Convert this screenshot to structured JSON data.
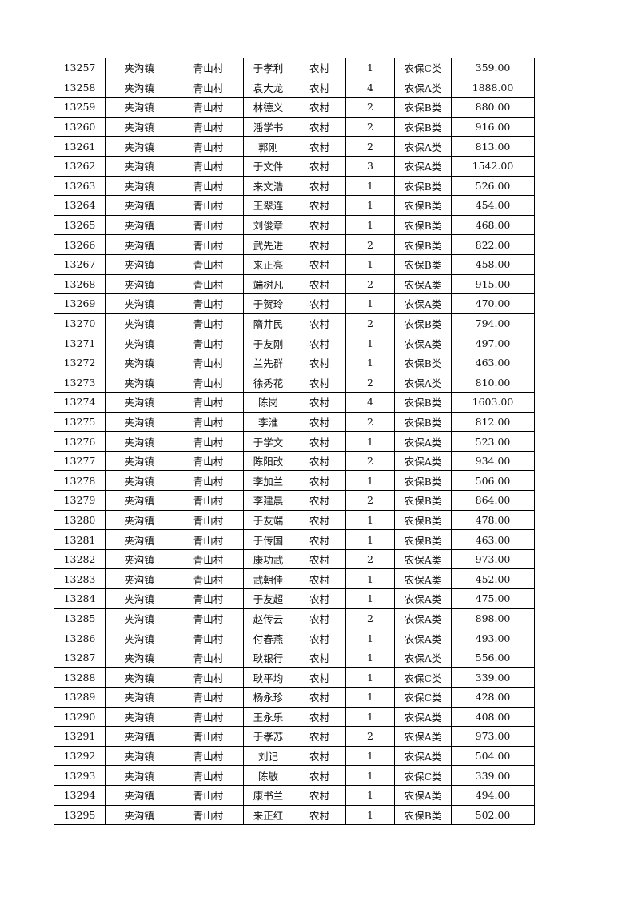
{
  "table": {
    "rows": [
      [
        "13257",
        "夹沟镇",
        "青山村",
        "于孝利",
        "农村",
        "1",
        "农保C类",
        "359.00"
      ],
      [
        "13258",
        "夹沟镇",
        "青山村",
        "袁大龙",
        "农村",
        "4",
        "农保A类",
        "1888.00"
      ],
      [
        "13259",
        "夹沟镇",
        "青山村",
        "林德义",
        "农村",
        "2",
        "农保B类",
        "880.00"
      ],
      [
        "13260",
        "夹沟镇",
        "青山村",
        "潘学书",
        "农村",
        "2",
        "农保B类",
        "916.00"
      ],
      [
        "13261",
        "夹沟镇",
        "青山村",
        "郭刚",
        "农村",
        "2",
        "农保A类",
        "813.00"
      ],
      [
        "13262",
        "夹沟镇",
        "青山村",
        "于文件",
        "农村",
        "3",
        "农保A类",
        "1542.00"
      ],
      [
        "13263",
        "夹沟镇",
        "青山村",
        "来文浩",
        "农村",
        "1",
        "农保B类",
        "526.00"
      ],
      [
        "13264",
        "夹沟镇",
        "青山村",
        "王翠连",
        "农村",
        "1",
        "农保B类",
        "454.00"
      ],
      [
        "13265",
        "夹沟镇",
        "青山村",
        "刘俊章",
        "农村",
        "1",
        "农保B类",
        "468.00"
      ],
      [
        "13266",
        "夹沟镇",
        "青山村",
        "武先进",
        "农村",
        "2",
        "农保B类",
        "822.00"
      ],
      [
        "13267",
        "夹沟镇",
        "青山村",
        "来正亮",
        "农村",
        "1",
        "农保B类",
        "458.00"
      ],
      [
        "13268",
        "夹沟镇",
        "青山村",
        "端树凡",
        "农村",
        "2",
        "农保A类",
        "915.00"
      ],
      [
        "13269",
        "夹沟镇",
        "青山村",
        "于贺玲",
        "农村",
        "1",
        "农保A类",
        "470.00"
      ],
      [
        "13270",
        "夹沟镇",
        "青山村",
        "隋井民",
        "农村",
        "2",
        "农保B类",
        "794.00"
      ],
      [
        "13271",
        "夹沟镇",
        "青山村",
        "于友刚",
        "农村",
        "1",
        "农保A类",
        "497.00"
      ],
      [
        "13272",
        "夹沟镇",
        "青山村",
        "兰先群",
        "农村",
        "1",
        "农保B类",
        "463.00"
      ],
      [
        "13273",
        "夹沟镇",
        "青山村",
        "徐秀花",
        "农村",
        "2",
        "农保A类",
        "810.00"
      ],
      [
        "13274",
        "夹沟镇",
        "青山村",
        "陈岗",
        "农村",
        "4",
        "农保B类",
        "1603.00"
      ],
      [
        "13275",
        "夹沟镇",
        "青山村",
        "李淮",
        "农村",
        "2",
        "农保B类",
        "812.00"
      ],
      [
        "13276",
        "夹沟镇",
        "青山村",
        "于学文",
        "农村",
        "1",
        "农保A类",
        "523.00"
      ],
      [
        "13277",
        "夹沟镇",
        "青山村",
        "陈阳改",
        "农村",
        "2",
        "农保A类",
        "934.00"
      ],
      [
        "13278",
        "夹沟镇",
        "青山村",
        "李加兰",
        "农村",
        "1",
        "农保B类",
        "506.00"
      ],
      [
        "13279",
        "夹沟镇",
        "青山村",
        "李建晨",
        "农村",
        "2",
        "农保B类",
        "864.00"
      ],
      [
        "13280",
        "夹沟镇",
        "青山村",
        "于友端",
        "农村",
        "1",
        "农保B类",
        "478.00"
      ],
      [
        "13281",
        "夹沟镇",
        "青山村",
        "于传国",
        "农村",
        "1",
        "农保B类",
        "463.00"
      ],
      [
        "13282",
        "夹沟镇",
        "青山村",
        "康功武",
        "农村",
        "2",
        "农保A类",
        "973.00"
      ],
      [
        "13283",
        "夹沟镇",
        "青山村",
        "武朝佳",
        "农村",
        "1",
        "农保A类",
        "452.00"
      ],
      [
        "13284",
        "夹沟镇",
        "青山村",
        "于友超",
        "农村",
        "1",
        "农保A类",
        "475.00"
      ],
      [
        "13285",
        "夹沟镇",
        "青山村",
        "赵传云",
        "农村",
        "2",
        "农保A类",
        "898.00"
      ],
      [
        "13286",
        "夹沟镇",
        "青山村",
        "付春燕",
        "农村",
        "1",
        "农保A类",
        "493.00"
      ],
      [
        "13287",
        "夹沟镇",
        "青山村",
        "耿银行",
        "农村",
        "1",
        "农保A类",
        "556.00"
      ],
      [
        "13288",
        "夹沟镇",
        "青山村",
        "耿平均",
        "农村",
        "1",
        "农保C类",
        "339.00"
      ],
      [
        "13289",
        "夹沟镇",
        "青山村",
        "杨永珍",
        "农村",
        "1",
        "农保C类",
        "428.00"
      ],
      [
        "13290",
        "夹沟镇",
        "青山村",
        "王永乐",
        "农村",
        "1",
        "农保A类",
        "408.00"
      ],
      [
        "13291",
        "夹沟镇",
        "青山村",
        "于孝苏",
        "农村",
        "2",
        "农保A类",
        "973.00"
      ],
      [
        "13292",
        "夹沟镇",
        "青山村",
        "刘记",
        "农村",
        "1",
        "农保A类",
        "504.00"
      ],
      [
        "13293",
        "夹沟镇",
        "青山村",
        "陈敏",
        "农村",
        "1",
        "农保C类",
        "339.00"
      ],
      [
        "13294",
        "夹沟镇",
        "青山村",
        "康书兰",
        "农村",
        "1",
        "农保A类",
        "494.00"
      ],
      [
        "13295",
        "夹沟镇",
        "青山村",
        "来正红",
        "农村",
        "1",
        "农保B类",
        "502.00"
      ]
    ]
  }
}
